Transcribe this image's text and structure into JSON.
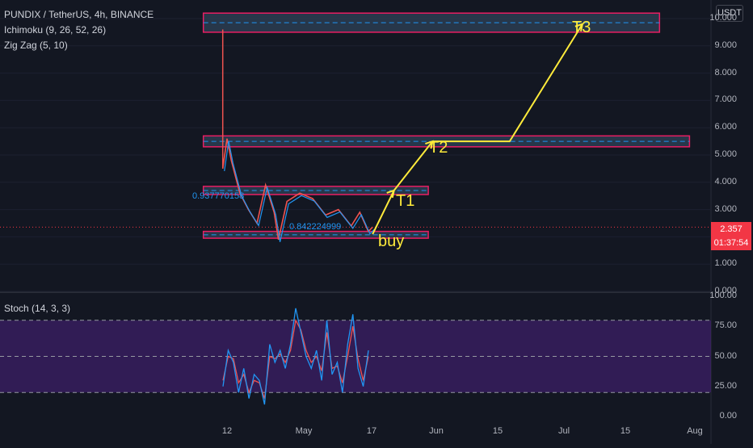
{
  "header": {
    "symbol": "PUNDIX / TetherUS, 4h, BINANCE",
    "indicator_1": "Ichimoku (9, 26, 52, 26)",
    "indicator_2": "Zig Zag (5, 10)",
    "oscillator": "Stoch (14, 3, 3)"
  },
  "price_axis": {
    "unit": "USDT",
    "ticks": [
      "9.000",
      "8.000",
      "7.000",
      "6.000",
      "5.000",
      "4.000",
      "3.000",
      "2.000",
      "1.000",
      "0.000"
    ],
    "top_tick": "10.000",
    "current_price": "2.357",
    "countdown": "01:37:54"
  },
  "stoch_axis": {
    "ticks": [
      "75.00",
      "50.00",
      "25.00",
      "0.00"
    ],
    "top_tick": "100.00"
  },
  "time_axis": {
    "ticks": [
      "12",
      "May",
      "17",
      "Jun",
      "15",
      "Jul",
      "15",
      "Aug"
    ]
  },
  "annotations": {
    "t1": "T1",
    "t2": "T2",
    "t3": "T3",
    "buy": "buy",
    "zigzag_label_1": "0.937770158",
    "zigzag_label_2": "0.842224999"
  },
  "colors": {
    "background": "#131722",
    "zone_border": "#e91e63",
    "zone_fill": "#2a3b4f",
    "zone_dash": "#2196f3",
    "annotation": "#ffeb3b",
    "stoch_band": "#4a2080",
    "stoch_k": "#2196f3",
    "stoch_d": "#ef5350",
    "price_line": "#f23645",
    "zigzag_label": "#2196f3"
  },
  "chart_data": {
    "type": "line",
    "symbol": "PUNDIX/USDT",
    "timeframe": "4h",
    "price_range": [
      0,
      10.2
    ],
    "price_series": [
      {
        "date": "2021-04-11",
        "close": 4.5
      },
      {
        "date": "2021-04-12",
        "close": 5.6
      },
      {
        "date": "2021-04-13",
        "close": 4.8
      },
      {
        "date": "2021-04-15",
        "close": 3.6
      },
      {
        "date": "2021-04-17",
        "close": 3.0
      },
      {
        "date": "2021-04-19",
        "close": 2.5
      },
      {
        "date": "2021-04-21",
        "close": 3.9
      },
      {
        "date": "2021-04-23",
        "close": 2.9
      },
      {
        "date": "2021-04-24",
        "close": 1.9
      },
      {
        "date": "2021-04-26",
        "close": 3.3
      },
      {
        "date": "2021-04-29",
        "close": 3.6
      },
      {
        "date": "2021-05-02",
        "close": 3.4
      },
      {
        "date": "2021-05-05",
        "close": 2.8
      },
      {
        "date": "2021-05-08",
        "close": 3.0
      },
      {
        "date": "2021-05-11",
        "close": 2.4
      },
      {
        "date": "2021-05-13",
        "close": 2.9
      },
      {
        "date": "2021-05-15",
        "close": 2.2
      },
      {
        "date": "2021-05-16",
        "close": 2.357
      }
    ],
    "zones": [
      {
        "name": "buy",
        "low": 1.95,
        "high": 2.2,
        "start": "2021-04-11",
        "end": "2021-05-29"
      },
      {
        "name": "T1",
        "low": 3.55,
        "high": 3.85,
        "start": "2021-04-11",
        "end": "2021-05-29"
      },
      {
        "name": "T2",
        "low": 5.3,
        "high": 5.7,
        "start": "2021-04-11",
        "end": "2021-07-29"
      },
      {
        "name": "T3",
        "low": 9.5,
        "high": 10.2,
        "start": "2021-04-11",
        "end": "2021-07-22"
      }
    ],
    "projection_path": [
      {
        "date": "2021-05-16",
        "price": 2.1
      },
      {
        "date": "2021-05-21",
        "price": 3.7
      },
      {
        "date": "2021-05-30",
        "price": 5.5
      },
      {
        "date": "2021-06-17",
        "price": 5.5
      },
      {
        "date": "2021-07-04",
        "price": 9.8
      }
    ],
    "current_price": 2.357,
    "stoch": {
      "range": [
        0,
        100
      ],
      "upper_band": 80,
      "lower_band": 20,
      "k": [
        25,
        55,
        45,
        20,
        40,
        15,
        35,
        30,
        10,
        60,
        45,
        55,
        40,
        60,
        90,
        70,
        50,
        40,
        55,
        30,
        80,
        35,
        45,
        20,
        60,
        85,
        40,
        25,
        55
      ],
      "d": [
        30,
        50,
        48,
        28,
        35,
        20,
        30,
        28,
        15,
        50,
        48,
        52,
        45,
        55,
        80,
        72,
        55,
        45,
        50,
        38,
        70,
        40,
        42,
        28,
        50,
        75,
        48,
        30,
        50
      ]
    }
  }
}
